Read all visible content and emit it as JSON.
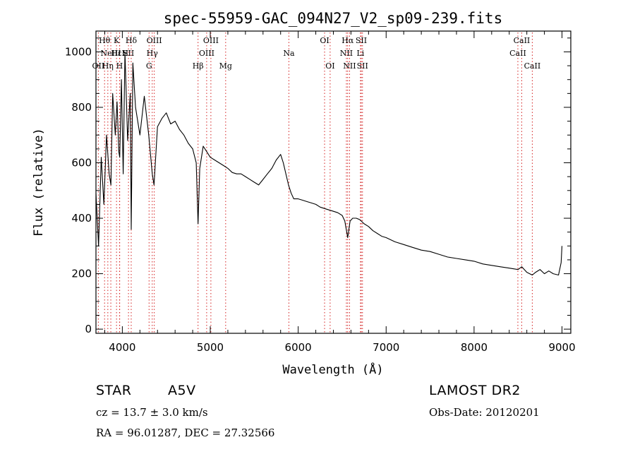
{
  "chart_data": {
    "type": "line",
    "title": "spec-55959-GAC_094N27_V2_sp09-239.fits",
    "xlabel": "Wavelength (Å)",
    "ylabel": "Flux (relative)",
    "xlim": [
      3700,
      9100
    ],
    "ylim": [
      -15,
      1075
    ],
    "xticks": [
      4000,
      5000,
      6000,
      7000,
      8000,
      9000
    ],
    "yticks": [
      0,
      200,
      400,
      600,
      800,
      1000
    ],
    "line_color": "#000000",
    "marker_line_color": "#d42020",
    "grid": false,
    "series": [
      {
        "x": [
          3700,
          3730,
          3760,
          3790,
          3820,
          3850,
          3870,
          3890,
          3920,
          3940,
          3960,
          3970,
          3990,
          4010,
          4030,
          4060,
          4090,
          4101,
          4120,
          4150,
          4200,
          4250,
          4300,
          4340,
          4360,
          4400,
          4450,
          4500,
          4550,
          4600,
          4650,
          4700,
          4750,
          4800,
          4840,
          4861,
          4880,
          4920,
          4960,
          5000,
          5050,
          5100,
          5150,
          5200,
          5250,
          5300,
          5350,
          5400,
          5450,
          5500,
          5550,
          5600,
          5650,
          5700,
          5750,
          5800,
          5830,
          5860,
          5890,
          5920,
          5950,
          6000,
          6050,
          6100,
          6150,
          6200,
          6250,
          6300,
          6350,
          6400,
          6450,
          6500,
          6530,
          6563,
          6590,
          6620,
          6660,
          6700,
          6750,
          6800,
          6850,
          6900,
          6950,
          7000,
          7100,
          7200,
          7300,
          7400,
          7500,
          7600,
          7700,
          7800,
          7900,
          8000,
          8100,
          8200,
          8300,
          8400,
          8500,
          8542,
          8600,
          8662,
          8700,
          8750,
          8800,
          8850,
          8900,
          8960,
          8990,
          9000
        ],
        "y": [
          490,
          300,
          620,
          450,
          700,
          560,
          520,
          850,
          700,
          820,
          640,
          620,
          900,
          560,
          1000,
          680,
          850,
          360,
          960,
          800,
          700,
          840,
          700,
          560,
          520,
          730,
          760,
          780,
          740,
          750,
          720,
          700,
          670,
          650,
          600,
          380,
          580,
          660,
          640,
          620,
          610,
          600,
          590,
          580,
          565,
          560,
          560,
          550,
          540,
          530,
          520,
          540,
          560,
          580,
          610,
          630,
          600,
          560,
          520,
          490,
          470,
          470,
          465,
          460,
          455,
          450,
          440,
          435,
          430,
          425,
          420,
          410,
          390,
          330,
          390,
          400,
          400,
          395,
          380,
          370,
          355,
          345,
          335,
          330,
          315,
          305,
          295,
          285,
          280,
          270,
          260,
          255,
          250,
          245,
          235,
          230,
          225,
          220,
          215,
          225,
          205,
          195,
          205,
          215,
          200,
          210,
          200,
          195,
          240,
          300
        ]
      }
    ],
    "line_markers": [
      {
        "label": "OII",
        "wavelength": 3727,
        "row": 3
      },
      {
        "label": "Hθ",
        "wavelength": 3798,
        "row": 1
      },
      {
        "label": "Hη",
        "wavelength": 3835,
        "row": 3
      },
      {
        "label": "NeIII",
        "wavelength": 3869,
        "row": 2
      },
      {
        "label": "K",
        "wavelength": 3934,
        "row": 1
      },
      {
        "label": "HεH",
        "wavelength": 3970,
        "row": 2
      },
      {
        "label": "H",
        "wavelength": 3968,
        "row": 3
      },
      {
        "label": "SII",
        "wavelength": 4070,
        "row": 2
      },
      {
        "label": "Hδ",
        "wavelength": 4101,
        "row": 1
      },
      {
        "label": "OIII",
        "wavelength": 4363,
        "row": 1
      },
      {
        "label": "Hγ",
        "wavelength": 4340,
        "row": 2
      },
      {
        "label": "G",
        "wavelength": 4304,
        "row": 3
      },
      {
        "label": "Hβ",
        "wavelength": 4861,
        "row": 3
      },
      {
        "label": "OIII",
        "wavelength": 5007,
        "row": 1
      },
      {
        "label": "OIII",
        "wavelength": 4959,
        "row": 2
      },
      {
        "label": "Mg",
        "wavelength": 5175,
        "row": 3
      },
      {
        "label": "Na",
        "wavelength": 5894,
        "row": 2
      },
      {
        "label": "OI",
        "wavelength": 6300,
        "row": 1
      },
      {
        "label": "OI",
        "wavelength": 6363,
        "row": 3
      },
      {
        "label": "Hα",
        "wavelength": 6563,
        "row": 1
      },
      {
        "label": "SII",
        "wavelength": 6717,
        "row": 1
      },
      {
        "label": "NII",
        "wavelength": 6548,
        "row": 2
      },
      {
        "label": "Li",
        "wavelength": 6708,
        "row": 2
      },
      {
        "label": "NII",
        "wavelength": 6584,
        "row": 3
      },
      {
        "label": "SII",
        "wavelength": 6731,
        "row": 3
      },
      {
        "label": "CaII",
        "wavelength": 8542,
        "row": 1
      },
      {
        "label": "CaII",
        "wavelength": 8498,
        "row": 2
      },
      {
        "label": "CaII",
        "wavelength": 8662,
        "row": 3
      }
    ]
  },
  "info": {
    "object_class": "STAR",
    "subclass": "A5V",
    "survey": "LAMOST DR2",
    "redshift": "cz = 13.7 ± 3.0 km/s",
    "obs_date": "Obs-Date: 20120201",
    "coords": "RA =  96.01287, DEC =  27.32566"
  }
}
